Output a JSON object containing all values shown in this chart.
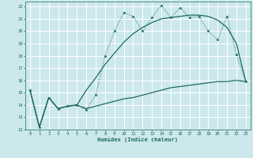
{
  "xlabel": "Humidex (Indice chaleur)",
  "bg_color": "#cce8ec",
  "grid_color": "#ffffff",
  "line_color": "#1a6b5e",
  "xlim": [
    -0.5,
    23.5
  ],
  "ylim": [
    12,
    22.4
  ],
  "xticks": [
    0,
    1,
    2,
    3,
    4,
    5,
    6,
    7,
    8,
    9,
    10,
    11,
    12,
    13,
    14,
    15,
    16,
    17,
    18,
    19,
    20,
    21,
    22,
    23
  ],
  "yticks": [
    12,
    13,
    14,
    15,
    16,
    17,
    18,
    19,
    20,
    21,
    22
  ],
  "line1_x": [
    0,
    1,
    2,
    3,
    4,
    5,
    6,
    7,
    8,
    9,
    10,
    11,
    12,
    13,
    14,
    15,
    16,
    17,
    18,
    19,
    20,
    21,
    22,
    23
  ],
  "line1_y": [
    15.2,
    12.2,
    14.6,
    13.7,
    13.9,
    14.0,
    13.6,
    14.8,
    18.0,
    20.0,
    21.5,
    21.2,
    20.0,
    21.1,
    22.1,
    21.1,
    21.9,
    21.1,
    21.2,
    20.0,
    19.3,
    21.2,
    18.1,
    15.9
  ],
  "line2_x": [
    0,
    1,
    2,
    3,
    4,
    5,
    6,
    7,
    8,
    9,
    10,
    11,
    12,
    13,
    14,
    15,
    16,
    17,
    18,
    19,
    20,
    21,
    22,
    23
  ],
  "line2_y": [
    15.2,
    12.2,
    14.6,
    13.7,
    13.9,
    14.0,
    15.2,
    16.2,
    17.3,
    18.2,
    19.1,
    19.8,
    20.3,
    20.7,
    21.0,
    21.1,
    21.2,
    21.3,
    21.3,
    21.2,
    20.9,
    20.3,
    19.0,
    15.9
  ],
  "line3_x": [
    0,
    1,
    2,
    3,
    4,
    5,
    6,
    7,
    8,
    9,
    10,
    11,
    12,
    13,
    14,
    15,
    16,
    17,
    18,
    19,
    20,
    21,
    22,
    23
  ],
  "line3_y": [
    15.2,
    12.2,
    14.6,
    13.7,
    13.9,
    14.0,
    13.7,
    13.9,
    14.1,
    14.3,
    14.5,
    14.6,
    14.8,
    15.0,
    15.2,
    15.4,
    15.5,
    15.6,
    15.7,
    15.8,
    15.9,
    15.9,
    16.0,
    15.9
  ]
}
